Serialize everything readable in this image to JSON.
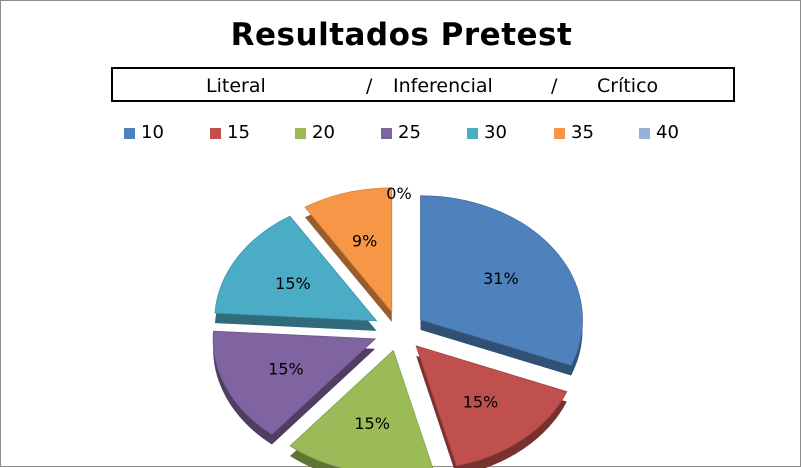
{
  "chart_data": {
    "type": "pie",
    "title": "Resultados Pretest",
    "subtitle": {
      "literal": "Literal",
      "sep1": "/",
      "inferencial": "Inferencial",
      "sep2": "/",
      "critico": "Crítico"
    },
    "legend": {
      "position": "top",
      "entries": [
        "10",
        "15",
        "20",
        "25",
        "30",
        "35",
        "40"
      ]
    },
    "slices": [
      {
        "category": "10",
        "value": 31,
        "label": "31%",
        "color": "#4f81bd"
      },
      {
        "category": "15",
        "value": 15,
        "label": "15%",
        "color": "#c0504d"
      },
      {
        "category": "20",
        "value": 15,
        "label": "15%",
        "color": "#9bbb59"
      },
      {
        "category": "25",
        "value": 15,
        "label": "15%",
        "color": "#8064a2"
      },
      {
        "category": "30",
        "value": 15,
        "label": "15%",
        "color": "#4bacc6"
      },
      {
        "category": "35",
        "value": 9,
        "label": "9%",
        "color": "#f79646"
      },
      {
        "category": "40",
        "value": 0,
        "label": "0%",
        "color": "#95b3d7"
      }
    ]
  }
}
